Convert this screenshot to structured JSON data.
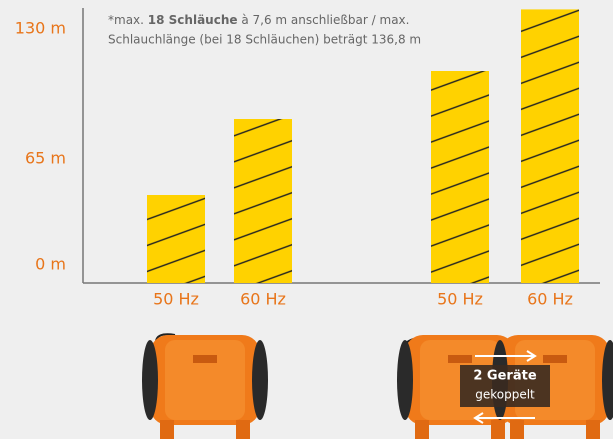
{
  "chart_data": {
    "type": "bar",
    "note": {
      "line1_start": "*max. ",
      "line1_bold": "18 Schläuche",
      "line1_end": " à 7,6 m anschließbar / max.",
      "line2": "Schlauchlänge (bei 18 Schläuchen) beträgt 136,8 m"
    },
    "categories": [
      "50 Hz",
      "60 Hz",
      "50 Hz",
      "60 Hz"
    ],
    "values": [
      44,
      82,
      106,
      136.8
    ],
    "color": "#ffd200",
    "ylim": [
      0,
      140
    ],
    "yticks": [
      {
        "value": 0,
        "label": "0 m"
      },
      {
        "value": 65,
        "label": "65 m"
      },
      {
        "value": 130,
        "label": "130 m"
      }
    ],
    "coupled_label": {
      "line1": "2 Geräte",
      "line2": "gekoppelt"
    }
  }
}
